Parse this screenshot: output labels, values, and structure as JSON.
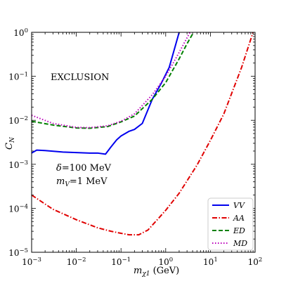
{
  "chart_data": {
    "type": "line",
    "xlabel": {
      "main": "m",
      "sub": "χ1",
      "unit": " (GeV)"
    },
    "ylabel": {
      "main": "C",
      "sub": "N"
    },
    "xscale": "log",
    "yscale": "log",
    "xlim": [
      0.001,
      100
    ],
    "ylim": [
      1e-05,
      1
    ],
    "x_tick_labels": [
      {
        "value": 0.001,
        "base": "10",
        "exp": "−3"
      },
      {
        "value": 0.01,
        "base": "10",
        "exp": "−2"
      },
      {
        "value": 0.1,
        "base": "10",
        "exp": "−1"
      },
      {
        "value": 1,
        "base": "10",
        "exp": "0"
      },
      {
        "value": 10,
        "base": "10",
        "exp": "1"
      },
      {
        "value": 100,
        "base": "10",
        "exp": "2"
      }
    ],
    "y_tick_labels": [
      {
        "value": 1e-05,
        "base": "10",
        "exp": "−5"
      },
      {
        "value": 0.0001,
        "base": "10",
        "exp": "−4"
      },
      {
        "value": 0.001,
        "base": "10",
        "exp": "−3"
      },
      {
        "value": 0.01,
        "base": "10",
        "exp": "−2"
      },
      {
        "value": 0.1,
        "base": "10",
        "exp": "−1"
      },
      {
        "value": 1,
        "base": "10",
        "exp": "0"
      }
    ],
    "annotations": {
      "exclusion": "EXCLUSION",
      "delta": {
        "main": "δ",
        "rest": "=100 MeV"
      },
      "mv": {
        "main": "m",
        "sub": "V",
        "rest": "=1 MeV"
      }
    },
    "legend_position": "bottom-right",
    "series": [
      {
        "name": "VV",
        "color": "#0000ee",
        "dash": "solid",
        "x": [
          0.001,
          0.0013,
          0.002,
          0.005,
          0.01,
          0.02,
          0.03,
          0.045,
          0.06,
          0.08,
          0.1,
          0.15,
          0.2,
          0.3,
          0.5,
          0.8,
          1.2,
          2.0
        ],
        "y": [
          0.0018,
          0.0021,
          0.00205,
          0.0019,
          0.00185,
          0.0018,
          0.0018,
          0.0017,
          0.0025,
          0.0036,
          0.0044,
          0.0056,
          0.0062,
          0.0085,
          0.03,
          0.07,
          0.16,
          1.0
        ]
      },
      {
        "name": "AA",
        "color": "#e00000",
        "dash": "dashdot",
        "x": [
          0.001,
          0.003,
          0.01,
          0.03,
          0.06,
          0.1,
          0.15,
          0.25,
          0.4,
          0.7,
          1,
          2,
          5,
          10,
          20,
          50,
          90
        ],
        "y": [
          0.0002,
          9.5e-05,
          5.5e-05,
          3.6e-05,
          3e-05,
          2.7e-05,
          2.5e-05,
          2.5e-05,
          3.2e-05,
          6e-05,
          9e-05,
          0.00022,
          0.00095,
          0.0035,
          0.014,
          0.16,
          1.0
        ]
      },
      {
        "name": "ED",
        "color": "#008000",
        "dash": "dashed",
        "x": [
          0.001,
          0.003,
          0.01,
          0.02,
          0.05,
          0.1,
          0.2,
          0.5,
          1,
          2,
          3,
          4.2
        ],
        "y": [
          0.0095,
          0.0078,
          0.0067,
          0.0066,
          0.0072,
          0.0092,
          0.0125,
          0.03,
          0.072,
          0.25,
          0.55,
          1.0
        ]
      },
      {
        "name": "MD",
        "color": "#bb00bb",
        "dash": "dotted",
        "x": [
          0.001,
          0.003,
          0.01,
          0.02,
          0.05,
          0.1,
          0.2,
          0.5,
          1,
          2,
          3.5
        ],
        "y": [
          0.013,
          0.0085,
          0.0069,
          0.0068,
          0.0075,
          0.0095,
          0.014,
          0.038,
          0.1,
          0.35,
          1.0
        ]
      }
    ]
  }
}
